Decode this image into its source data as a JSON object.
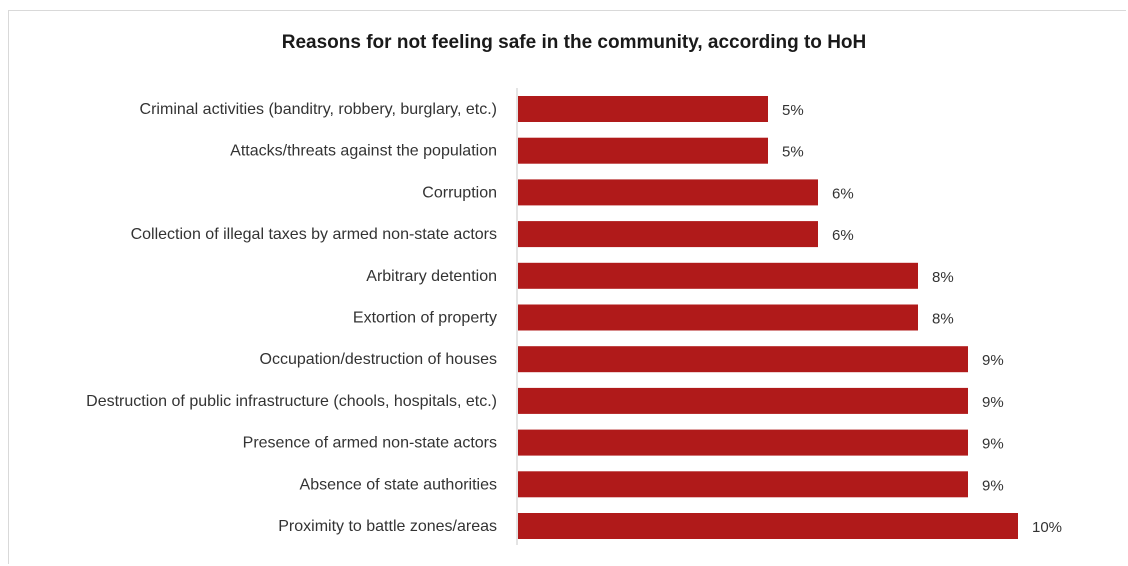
{
  "chart_data": {
    "type": "bar",
    "orientation": "horizontal",
    "title": "Reasons for not feeling safe in the community, according to HoH",
    "categories": [
      "Criminal activities (banditry, robbery, burglary, etc.)",
      "Attacks/threats against the population",
      "Corruption",
      "Collection of illegal taxes by armed non-state actors",
      "Arbitrary detention",
      "Extortion of property",
      "Occupation/destruction of houses",
      "Destruction of public infrastructure (chools, hospitals, etc.)",
      "Presence of armed non-state actors",
      "Absence of state authorities",
      "Proximity to battle zones/areas"
    ],
    "values": [
      5,
      5,
      6,
      6,
      8,
      8,
      9,
      9,
      9,
      9,
      10
    ],
    "value_labels": [
      "5%",
      "5%",
      "6%",
      "6%",
      "8%",
      "8%",
      "9%",
      "9%",
      "9%",
      "9%",
      "10%"
    ],
    "unit": "%",
    "xlim": [
      0,
      10
    ],
    "grid": false,
    "legend": "none",
    "colors": {
      "bar": "#b01a1a",
      "axis": "#c8c8c8",
      "text": "#333333"
    }
  }
}
